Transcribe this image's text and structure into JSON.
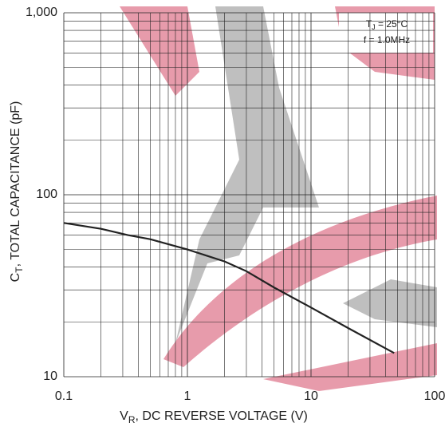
{
  "chart_data": {
    "type": "line",
    "y_label": {
      "main": "C",
      "sub": "T",
      "rest": ", TOTAL CAPACITANCE (pF)"
    },
    "x_label": {
      "main": "V",
      "sub": "R",
      "rest": ", DC REVERSE VOLTAGE (V)"
    },
    "annotation": {
      "main": "T",
      "sub": "J",
      "rest": " = 25°C",
      "freq": "f = 1.0MHz"
    },
    "x": [
      0.1,
      0.2,
      0.33,
      0.5,
      1,
      2,
      3,
      5,
      10,
      20,
      47
    ],
    "values": [
      70,
      65,
      60,
      57,
      50,
      43,
      38,
      31,
      24,
      18.5,
      13.5
    ],
    "color": "#222222",
    "x_log": true,
    "y_log": true,
    "xlim": [
      0.1,
      100
    ],
    "ylim": [
      10,
      1000
    ],
    "xticks": [
      0.1,
      1,
      10,
      100
    ],
    "yticks": [
      10,
      100,
      {
        "value": 1000,
        "label": "1,000"
      }
    ],
    "grid": true,
    "minor_grid": true
  }
}
